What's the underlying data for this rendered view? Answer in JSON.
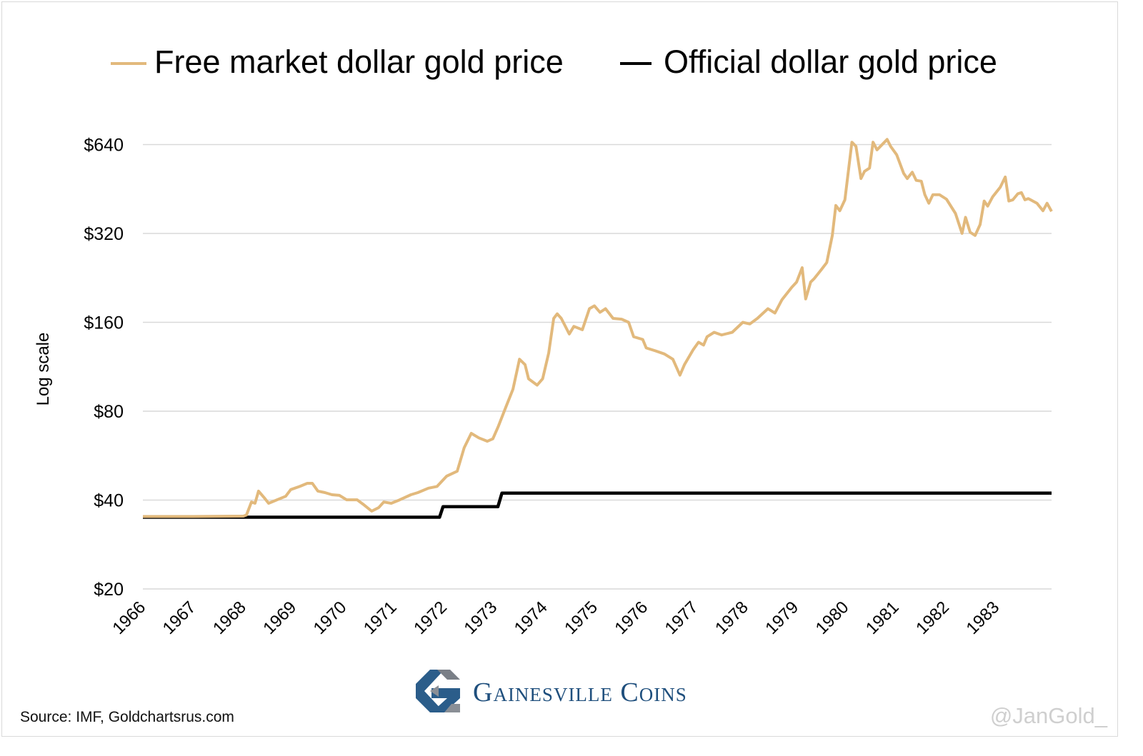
{
  "chart_data": {
    "type": "line",
    "title": "",
    "ylabel": "Log scale",
    "xlabel": "",
    "y_scale": "log2",
    "ylim": [
      20,
      640
    ],
    "xlim": [
      1966,
      1984.07
    ],
    "grid": true,
    "legend_position": "top",
    "y_ticks": [
      {
        "value": 640,
        "label": "$640"
      },
      {
        "value": 320,
        "label": "$320"
      },
      {
        "value": 160,
        "label": "$160"
      },
      {
        "value": 80,
        "label": "$80"
      },
      {
        "value": 40,
        "label": "$40"
      },
      {
        "value": 20,
        "label": "$20"
      }
    ],
    "x_ticks": [
      "1966",
      "1967",
      "1968",
      "1969",
      "1970",
      "1971",
      "1972",
      "1973",
      "1974",
      "1975",
      "1976",
      "1977",
      "1978",
      "1979",
      "1980",
      "1981",
      "1982",
      "1983"
    ],
    "series": [
      {
        "name": "Free market dollar gold price",
        "color": "#e2b97c",
        "points": [
          [
            1966,
            35.2
          ],
          [
            1967,
            35.2
          ],
          [
            1968,
            35.3
          ],
          [
            1968.06,
            35.6
          ],
          [
            1968.16,
            39.4
          ],
          [
            1968.23,
            39.0
          ],
          [
            1968.3,
            42.9
          ],
          [
            1968.41,
            40.8
          ],
          [
            1968.5,
            39.0
          ],
          [
            1968.7,
            40.3
          ],
          [
            1968.84,
            41.2
          ],
          [
            1968.94,
            43.4
          ],
          [
            1969.12,
            44.5
          ],
          [
            1969.27,
            45.6
          ],
          [
            1969.37,
            45.6
          ],
          [
            1969.48,
            42.9
          ],
          [
            1969.62,
            42.4
          ],
          [
            1969.76,
            41.7
          ],
          [
            1969.91,
            41.5
          ],
          [
            1970.05,
            40.1
          ],
          [
            1970.26,
            40.1
          ],
          [
            1970.4,
            38.5
          ],
          [
            1970.55,
            36.7
          ],
          [
            1970.69,
            37.7
          ],
          [
            1970.79,
            39.4
          ],
          [
            1970.94,
            39.0
          ],
          [
            1971.11,
            40.1
          ],
          [
            1971.33,
            41.7
          ],
          [
            1971.47,
            42.4
          ],
          [
            1971.68,
            43.9
          ],
          [
            1971.85,
            44.5
          ],
          [
            1972.04,
            48.2
          ],
          [
            1972.25,
            50.1
          ],
          [
            1972.39,
            60.2
          ],
          [
            1972.53,
            67.3
          ],
          [
            1972.68,
            65
          ],
          [
            1972.85,
            63.3
          ],
          [
            1972.96,
            64.5
          ],
          [
            1973.07,
            71.2
          ],
          [
            1973.22,
            82.7
          ],
          [
            1973.36,
            95
          ],
          [
            1973.49,
            120
          ],
          [
            1973.6,
            115
          ],
          [
            1973.67,
            103
          ],
          [
            1973.84,
            98
          ],
          [
            1973.95,
            103
          ],
          [
            1974.07,
            126
          ],
          [
            1974.17,
            165
          ],
          [
            1974.24,
            171
          ],
          [
            1974.32,
            165
          ],
          [
            1974.48,
            146
          ],
          [
            1974.57,
            155
          ],
          [
            1974.74,
            151
          ],
          [
            1974.88,
            178
          ],
          [
            1974.98,
            182
          ],
          [
            1975.09,
            173
          ],
          [
            1975.2,
            178
          ],
          [
            1975.35,
            165
          ],
          [
            1975.52,
            164
          ],
          [
            1975.66,
            160
          ],
          [
            1975.76,
            143
          ],
          [
            1975.94,
            140
          ],
          [
            1976.01,
            131
          ],
          [
            1976.2,
            128
          ],
          [
            1976.37,
            125
          ],
          [
            1976.54,
            120
          ],
          [
            1976.68,
            106
          ],
          [
            1976.77,
            115
          ],
          [
            1976.94,
            129
          ],
          [
            1977.05,
            137
          ],
          [
            1977.15,
            134
          ],
          [
            1977.22,
            143
          ],
          [
            1977.36,
            148
          ],
          [
            1977.51,
            145
          ],
          [
            1977.72,
            148
          ],
          [
            1977.93,
            160
          ],
          [
            1978.07,
            158
          ],
          [
            1978.22,
            165
          ],
          [
            1978.43,
            178
          ],
          [
            1978.57,
            172
          ],
          [
            1978.71,
            191
          ],
          [
            1978.9,
            210
          ],
          [
            1979,
            219
          ],
          [
            1979.11,
            245
          ],
          [
            1979.18,
            192
          ],
          [
            1979.28,
            219
          ],
          [
            1979.35,
            225
          ],
          [
            1979.49,
            241
          ],
          [
            1979.6,
            255
          ],
          [
            1979.71,
            315
          ],
          [
            1979.78,
            398
          ],
          [
            1979.86,
            382
          ],
          [
            1979.96,
            416
          ],
          [
            1980.1,
            652
          ],
          [
            1980.18,
            631
          ],
          [
            1980.28,
            491
          ],
          [
            1980.35,
            519
          ],
          [
            1980.45,
            533
          ],
          [
            1980.52,
            652
          ],
          [
            1980.6,
            614
          ],
          [
            1980.8,
            666
          ],
          [
            1980.87,
            631
          ],
          [
            1980.99,
            591
          ],
          [
            1981.13,
            511
          ],
          [
            1981.2,
            491
          ],
          [
            1981.3,
            516
          ],
          [
            1981.38,
            484
          ],
          [
            1981.48,
            481
          ],
          [
            1981.55,
            433
          ],
          [
            1981.63,
            405
          ],
          [
            1981.71,
            433
          ],
          [
            1981.84,
            433
          ],
          [
            1981.98,
            418
          ],
          [
            1982.16,
            374
          ],
          [
            1982.29,
            320
          ],
          [
            1982.36,
            363
          ],
          [
            1982.45,
            323
          ],
          [
            1982.55,
            315
          ],
          [
            1982.65,
            343
          ],
          [
            1982.73,
            412
          ],
          [
            1982.8,
            396
          ],
          [
            1982.9,
            426
          ],
          [
            1983.05,
            459
          ],
          [
            1983.15,
            497
          ],
          [
            1983.22,
            412
          ],
          [
            1983.3,
            416
          ],
          [
            1983.4,
            436
          ],
          [
            1983.47,
            440
          ],
          [
            1983.54,
            416
          ],
          [
            1983.61,
            420
          ],
          [
            1983.78,
            405
          ],
          [
            1983.9,
            382
          ],
          [
            1983.98,
            405
          ],
          [
            1984.07,
            380
          ]
        ]
      },
      {
        "name": "Official dollar gold price",
        "color": "#000000",
        "points": [
          [
            1966,
            35
          ],
          [
            1971.9,
            35
          ],
          [
            1971.97,
            38
          ],
          [
            1973.06,
            38
          ],
          [
            1973.14,
            42.22
          ],
          [
            1984.07,
            42.22
          ]
        ]
      }
    ]
  },
  "source": "Source: IMF, Goldchartsrus.com",
  "brand": {
    "name": "Gainesville Coins",
    "color": "#1f4f7d"
  },
  "handle": "@JanGold_"
}
